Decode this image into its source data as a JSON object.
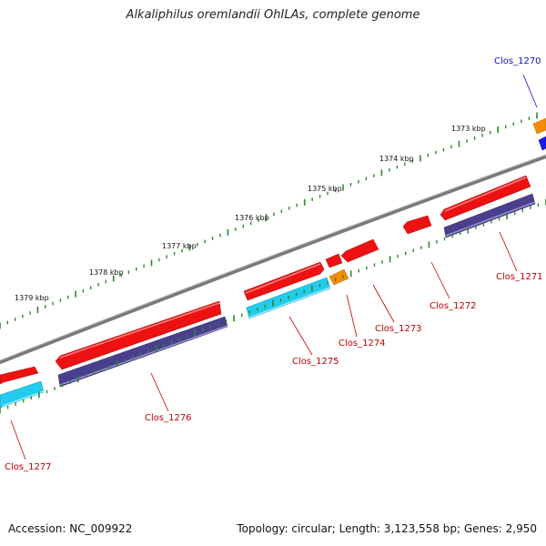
{
  "header": {
    "title": "Alkaliphilus oremlandii OhILAs, complete genome"
  },
  "footer": {
    "accession": "Accession: NC_009922",
    "topology": "Topology: circular; Length: 3,123,558 bp; Genes: 2,950"
  },
  "ruler": {
    "unit": "kbp",
    "labels": [
      "1373 kbp",
      "1374 kbp",
      "1375 kbp",
      "1376 kbp",
      "1377 kbp",
      "1378 kbp",
      "1379 kbp"
    ]
  },
  "genes": [
    {
      "name": "Clos_1270",
      "color": "#1010c8"
    },
    {
      "name": "Clos_1271",
      "color": "#c00000"
    },
    {
      "name": "Clos_1272",
      "color": "#c00000"
    },
    {
      "name": "Clos_1273",
      "color": "#c00000"
    },
    {
      "name": "Clos_1274",
      "color": "#c00000"
    },
    {
      "name": "Clos_1275",
      "color": "#c00000"
    },
    {
      "name": "Clos_1276",
      "color": "#c00000"
    },
    {
      "name": "Clos_1277",
      "color": "#c00000"
    }
  ],
  "colors": {
    "cds_forward": "#ee1111",
    "cds_reverse_purple": "#4a3f8e",
    "cds_reverse_cyan": "#22ccee",
    "rna_orange": "#f28c00",
    "backbone": "#808080",
    "tick": "#2a8a2a"
  }
}
